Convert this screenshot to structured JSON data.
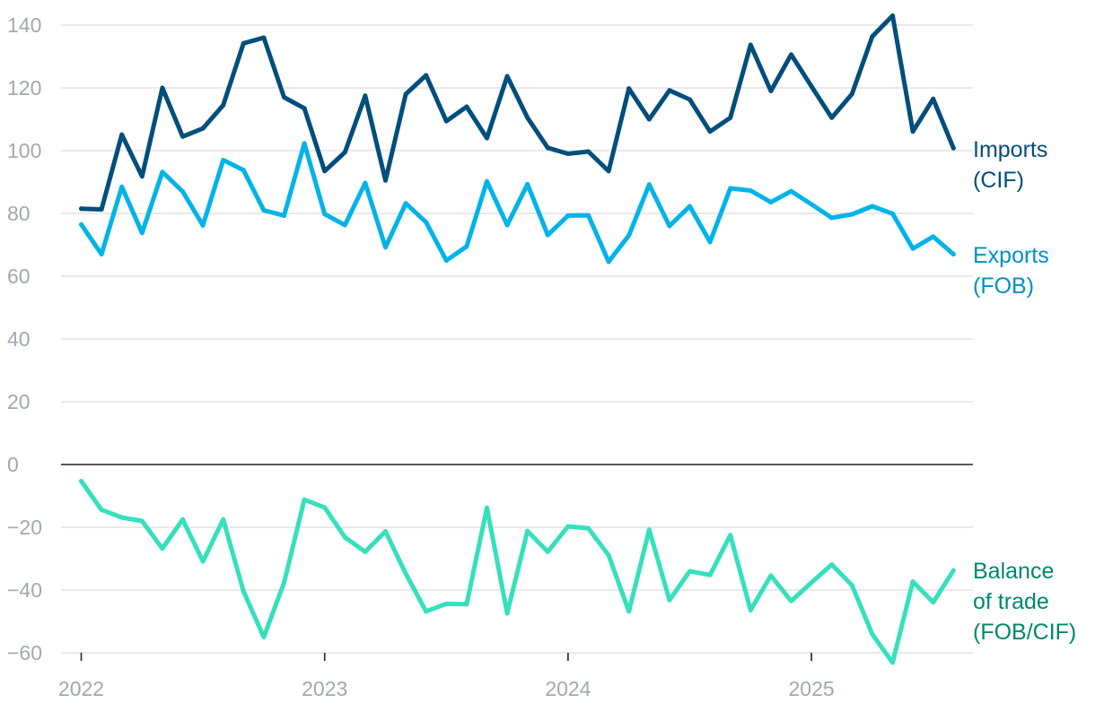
{
  "chart_data": {
    "type": "line",
    "title": "",
    "xlabel": "",
    "ylabel": "",
    "ylim": [
      -60,
      140
    ],
    "yticks": [
      140,
      120,
      100,
      80,
      60,
      40,
      20,
      0,
      -20,
      -40,
      -60
    ],
    "ytick_labels": [
      "140",
      "120",
      "100",
      "80",
      "60",
      "40",
      "20",
      "0",
      "−20",
      "−40",
      "−60"
    ],
    "xticks": [
      {
        "label": "2022",
        "month_index": 0
      },
      {
        "label": "2023",
        "month_index": 12
      },
      {
        "label": "2024",
        "month_index": 24
      },
      {
        "label": "2025",
        "month_index": 36
      }
    ],
    "x_start": "Jan 2022",
    "x_interval": "monthly",
    "grid": true,
    "legend": "direct labels at right end of lines",
    "series": [
      {
        "key": "imports",
        "name_lines": [
          "Imports",
          "(CIF)"
        ],
        "color": "#004e7c",
        "label_color": "#004e7c",
        "values": [
          81.5,
          81.3,
          105.1,
          91.8,
          120.0,
          104.5,
          107.1,
          114.5,
          134.2,
          136.0,
          117.0,
          113.5,
          93.5,
          99.5,
          117.5,
          90.5,
          118.0,
          124.0,
          109.4,
          114.0,
          104.0,
          123.7,
          110.5,
          100.9,
          99.0,
          99.7,
          93.5,
          119.8,
          110.0,
          119.2,
          116.3,
          106.1,
          110.5,
          133.7,
          119.0,
          130.6,
          120.5,
          110.5,
          118.1,
          136.4,
          143.0,
          106.1,
          116.5,
          100.8
        ]
      },
      {
        "key": "exports",
        "name_lines": [
          "Exports",
          "(FOB)"
        ],
        "color": "#00b3e8",
        "label_color": "#0090c4",
        "values": [
          76.5,
          67.0,
          88.5,
          73.8,
          93.2,
          87.0,
          76.2,
          97.0,
          93.8,
          81.0,
          79.3,
          102.3,
          79.8,
          76.3,
          89.7,
          69.2,
          83.2,
          77.2,
          65.0,
          69.5,
          90.2,
          76.3,
          89.3,
          73.1,
          79.3,
          79.4,
          64.6,
          73.0,
          89.2,
          76.0,
          82.3,
          70.9,
          88.0,
          87.3,
          83.6,
          87.1,
          82.9,
          78.6,
          79.7,
          82.3,
          79.9,
          68.8,
          72.6,
          67.0
        ]
      },
      {
        "key": "balance",
        "name_lines": [
          "Balance",
          "of trade",
          "(FOB/CIF)"
        ],
        "color": "#35e0bc",
        "label_color": "#00876c",
        "values": [
          -5.3,
          -14.4,
          -16.9,
          -18.0,
          -26.8,
          -17.5,
          -30.9,
          -17.5,
          -40.4,
          -55.0,
          -37.7,
          -11.2,
          -13.7,
          -23.2,
          -27.8,
          -21.3,
          -34.8,
          -46.8,
          -44.4,
          -44.5,
          -13.8,
          -47.4,
          -21.2,
          -27.8,
          -19.7,
          -20.3,
          -28.9,
          -46.8,
          -20.8,
          -43.2,
          -34.0,
          -35.2,
          -22.5,
          -46.4,
          -35.4,
          -43.5,
          -37.6,
          -31.9,
          -38.5,
          -54.1,
          -63.1,
          -37.3,
          -43.9,
          -33.8
        ]
      }
    ]
  }
}
